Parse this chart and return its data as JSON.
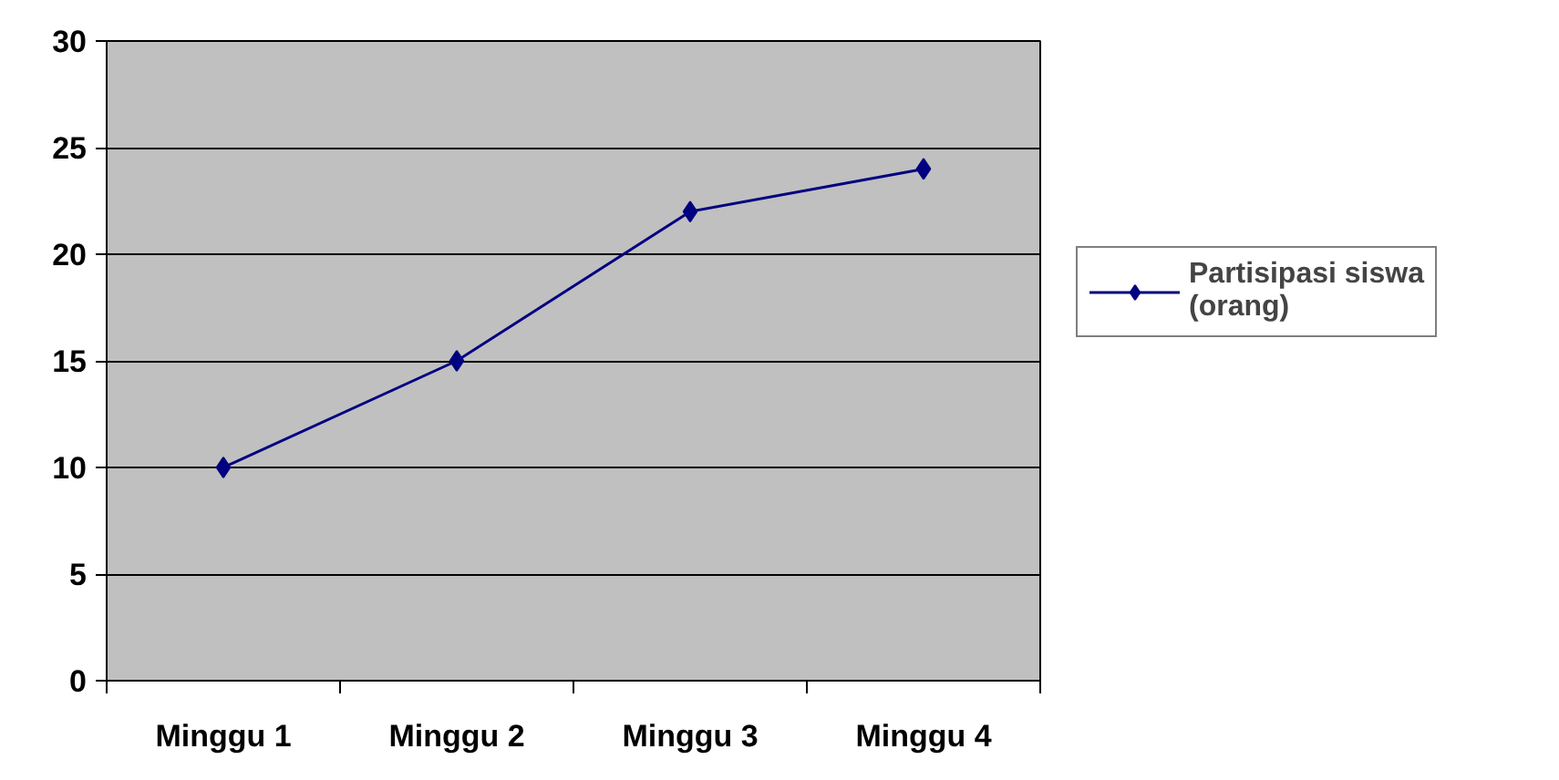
{
  "chart_data": {
    "type": "line",
    "categories": [
      "Minggu 1",
      "Minggu 2",
      "Minggu 3",
      "Minggu 4"
    ],
    "series": [
      {
        "name": "Partisipasi siswa (orang)",
        "color": "#000080",
        "values": [
          10,
          15,
          22,
          24
        ]
      }
    ],
    "ylim": [
      0,
      30
    ],
    "yticks": [
      0,
      5,
      10,
      15,
      20,
      25,
      30
    ],
    "grid": "y",
    "legend": "right",
    "marker": "diamond",
    "line_style": "solid"
  }
}
